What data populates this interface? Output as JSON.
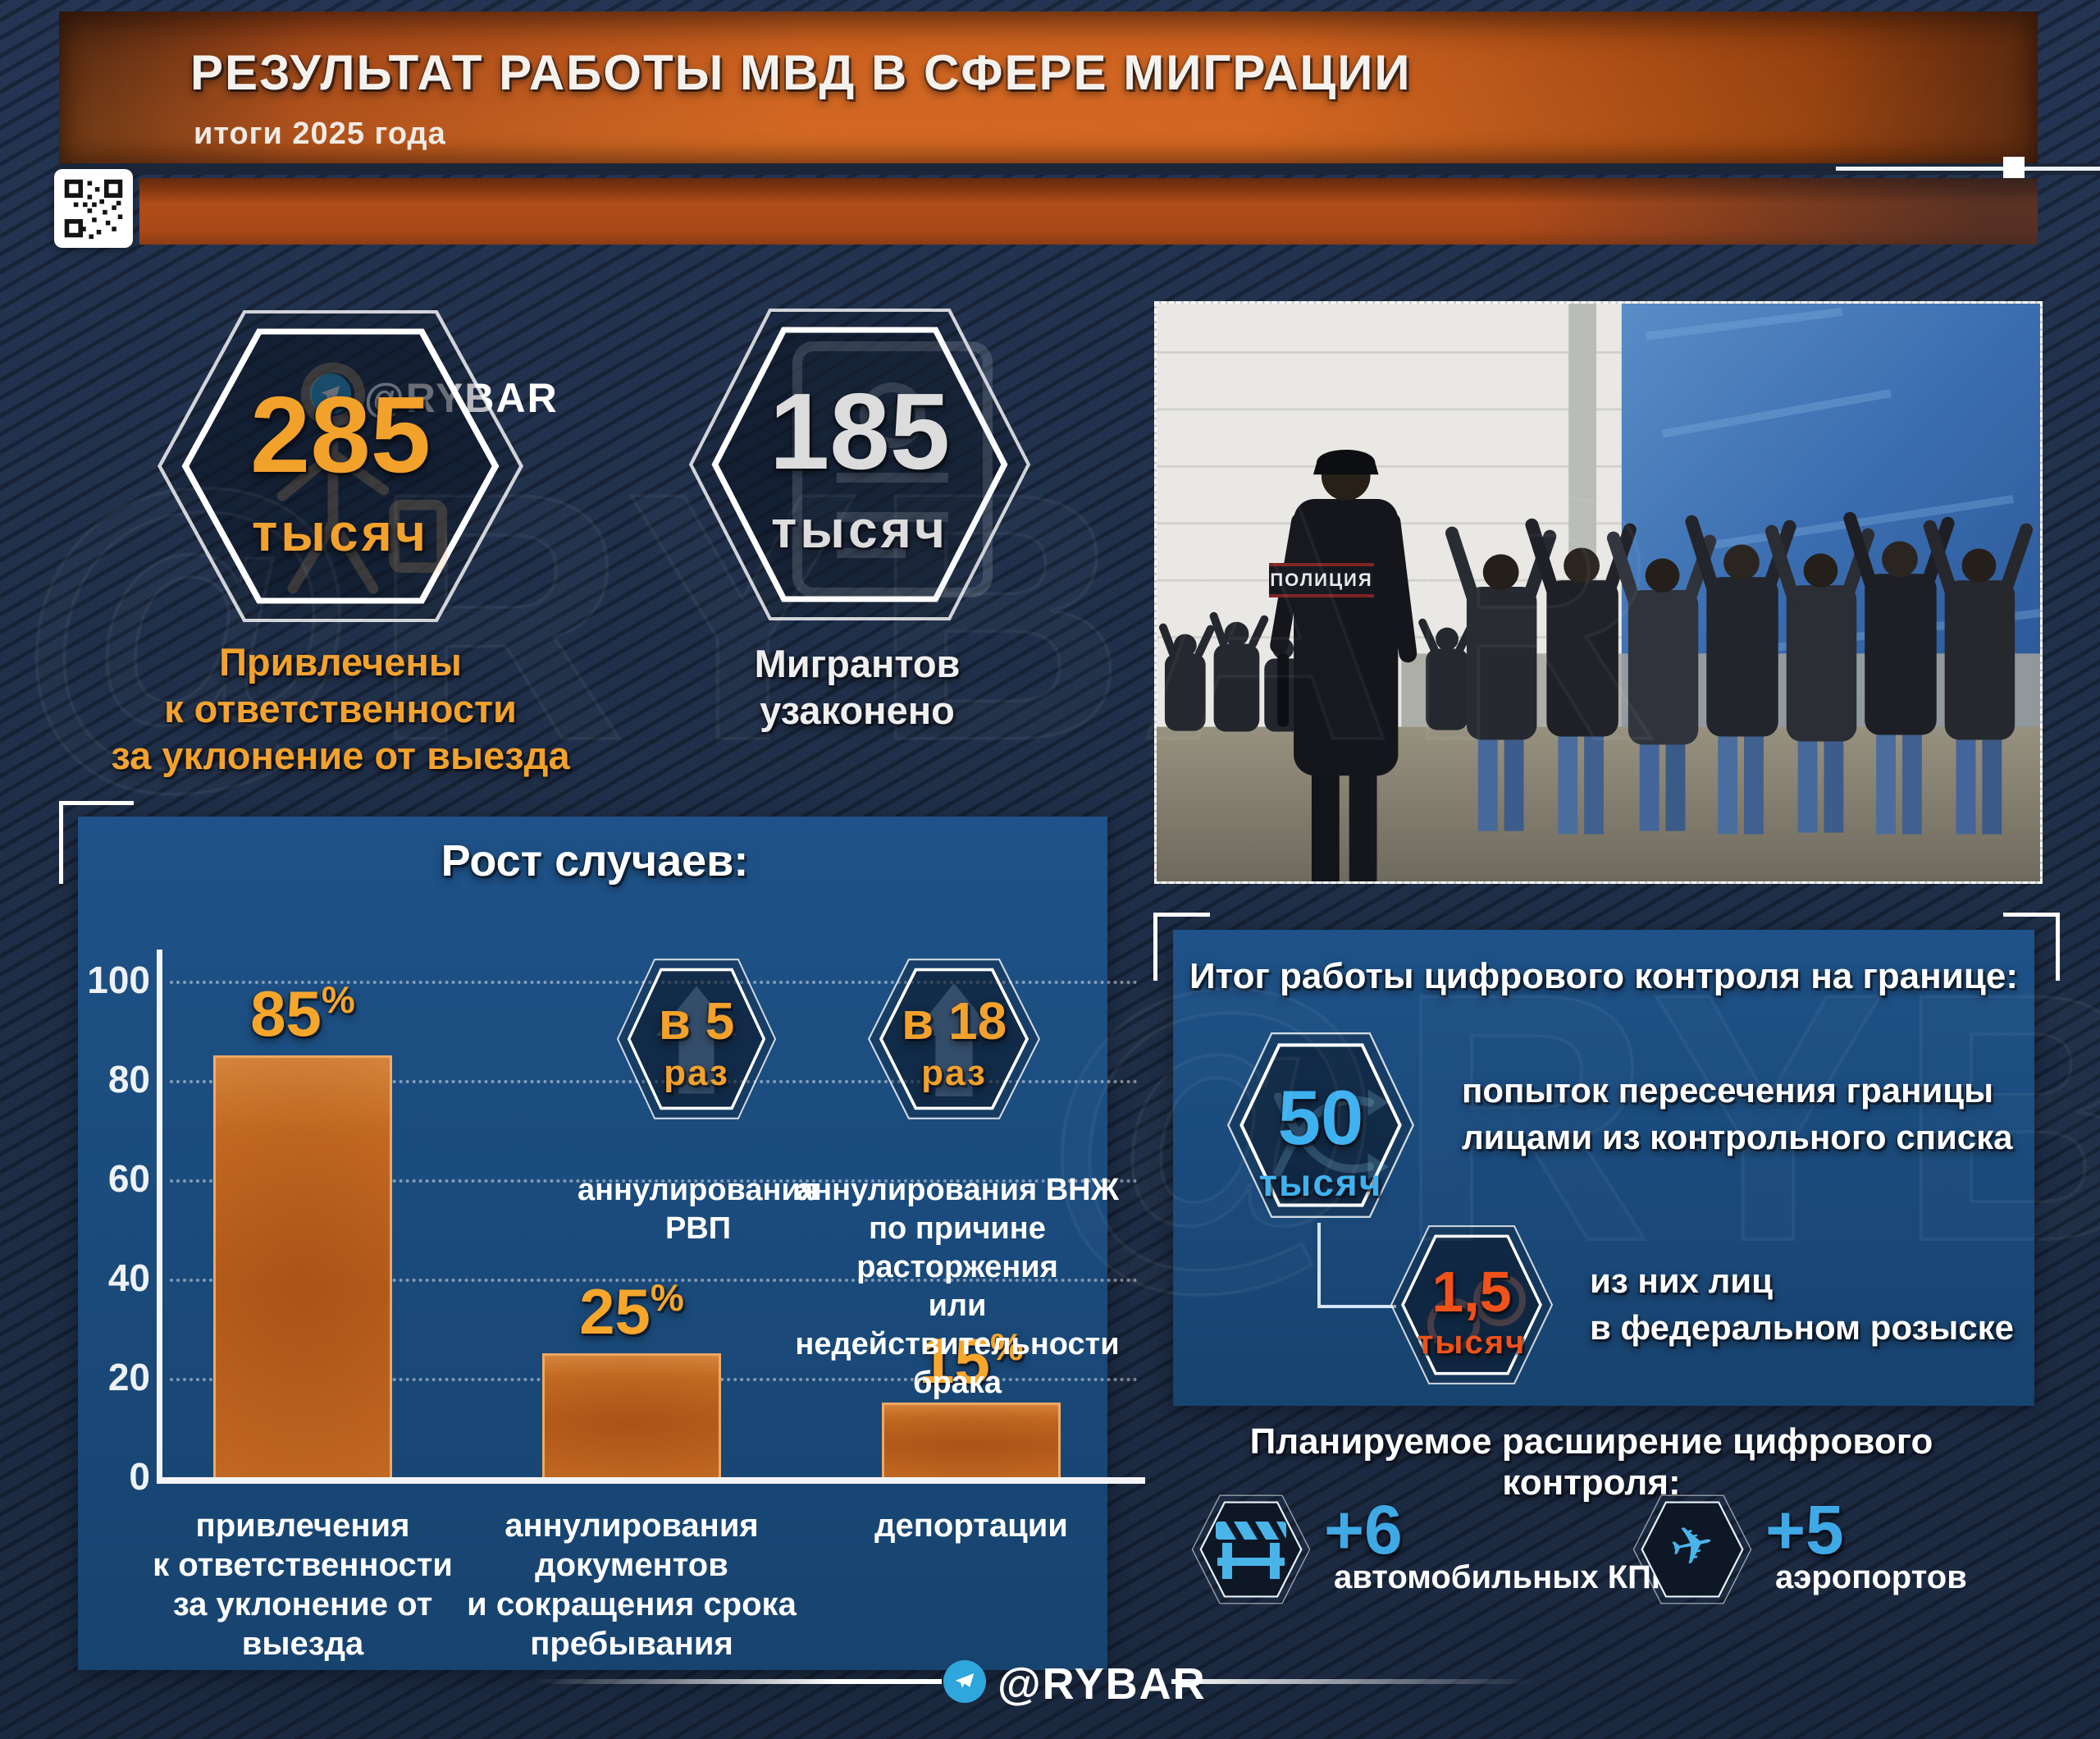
{
  "header": {
    "title": "РЕЗУЛЬТАТ РАБОТЫ МВД В СФЕРЕ МИГРАЦИИ",
    "subtitle": "итоги 2025 года",
    "channel": "@RYBAR"
  },
  "hex_stats": {
    "detained": {
      "value": "285",
      "unit": "тысяч",
      "caption": [
        "Привлечены",
        "к ответственности",
        "за уклонение от выезда"
      ]
    },
    "legalized": {
      "value": "185",
      "unit": "тысяч",
      "caption": [
        "Мигрантов",
        "узаконено"
      ]
    }
  },
  "photo": {
    "police_patch": "ПОЛИЦИЯ"
  },
  "growth": {
    "rvp": {
      "value": "в 5",
      "unit": "раз",
      "caption": [
        "аннулирования",
        "РВП"
      ]
    },
    "vnzh": {
      "value": "в 18",
      "unit": "раз",
      "caption": [
        "аннулирования ВНЖ",
        "по причине расторжения",
        "или недействительности",
        "брака"
      ]
    }
  },
  "chart_data": {
    "type": "bar",
    "title": "Рост случаев:",
    "unit": "%",
    "values": [
      85,
      25,
      15
    ],
    "categories": [
      "привлечения к ответственности за уклонение от выезда",
      "аннулирования документов и сокращения срока пребывания",
      "депортации"
    ],
    "categories_lines": [
      [
        "привлечения",
        "к ответственности",
        "за уклонение от выезда"
      ],
      [
        "аннулирования",
        "документов",
        "и сокращения срока",
        "пребывания"
      ],
      [
        "депортации"
      ]
    ],
    "xlabel": "",
    "ylabel": "",
    "ylim": [
      0,
      100
    ],
    "yticks": [
      0,
      20,
      40,
      60,
      80,
      100
    ],
    "grid": true,
    "legend": false,
    "bar_color": "#c2661f"
  },
  "border_control": {
    "title": "Итог работы цифрового контроля на границе:",
    "attempts": {
      "value": "50",
      "unit": "тысяч",
      "lines": [
        "попыток пересечения границы",
        "лицами из контрольного списка"
      ]
    },
    "wanted": {
      "value": "1,5",
      "unit": "тысяч",
      "lines": [
        "из них лиц",
        "в федеральном розыске"
      ]
    }
  },
  "expansion": {
    "title": "Планируемое расширение цифрового контроля:",
    "checkpoints": {
      "value": "+6",
      "label": "автомобильных КПП"
    },
    "airports": {
      "value": "+5",
      "label": "аэропортов"
    }
  },
  "footer": {
    "channel": "@RYBAR"
  },
  "watermark": {
    "text": "@RYBAR"
  },
  "colors": {
    "accent_orange": "#f2a12b",
    "header_orange": "#c75d1e",
    "panel_blue": "#1b4d80",
    "light_blue": "#3db1f0",
    "alert_orange_red": "#f0521a",
    "icon_blue": "#3fa9e5"
  }
}
